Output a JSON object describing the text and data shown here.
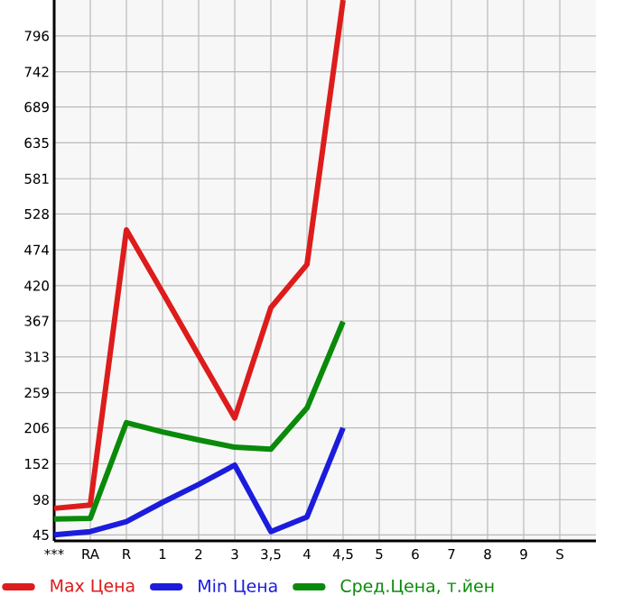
{
  "chart_data": {
    "type": "line",
    "categories": [
      "***",
      "RA",
      "R",
      "1",
      "2",
      "3",
      "3,5",
      "4",
      "4,5",
      "5",
      "6",
      "7",
      "8",
      "9",
      "S"
    ],
    "series": [
      {
        "name": "Max Цена",
        "color": "#dd1c1c",
        "values": [
          85,
          90,
          504,
          410,
          315,
          221,
          387,
          452,
          850,
          null,
          null,
          null,
          null,
          null,
          null
        ]
      },
      {
        "name": "Min Цена",
        "color": "#1c1cdd",
        "values": [
          45,
          50,
          65,
          94,
          121,
          150,
          50,
          72,
          206,
          null,
          null,
          null,
          null,
          null,
          null
        ]
      },
      {
        "name": "Сред.Цена, т.йен",
        "color": "#0a8a0a",
        "values": [
          69,
          70,
          214,
          200,
          188,
          177,
          174,
          236,
          366,
          null,
          null,
          null,
          null,
          null,
          null
        ]
      }
    ],
    "ylim": [
      36,
      850
    ],
    "yticks": [
      45,
      98,
      152,
      206,
      259,
      313,
      367,
      420,
      474,
      528,
      581,
      635,
      689,
      742,
      796
    ],
    "grid": true,
    "legend": "bottom",
    "marker": "none",
    "line_style": "solid"
  }
}
